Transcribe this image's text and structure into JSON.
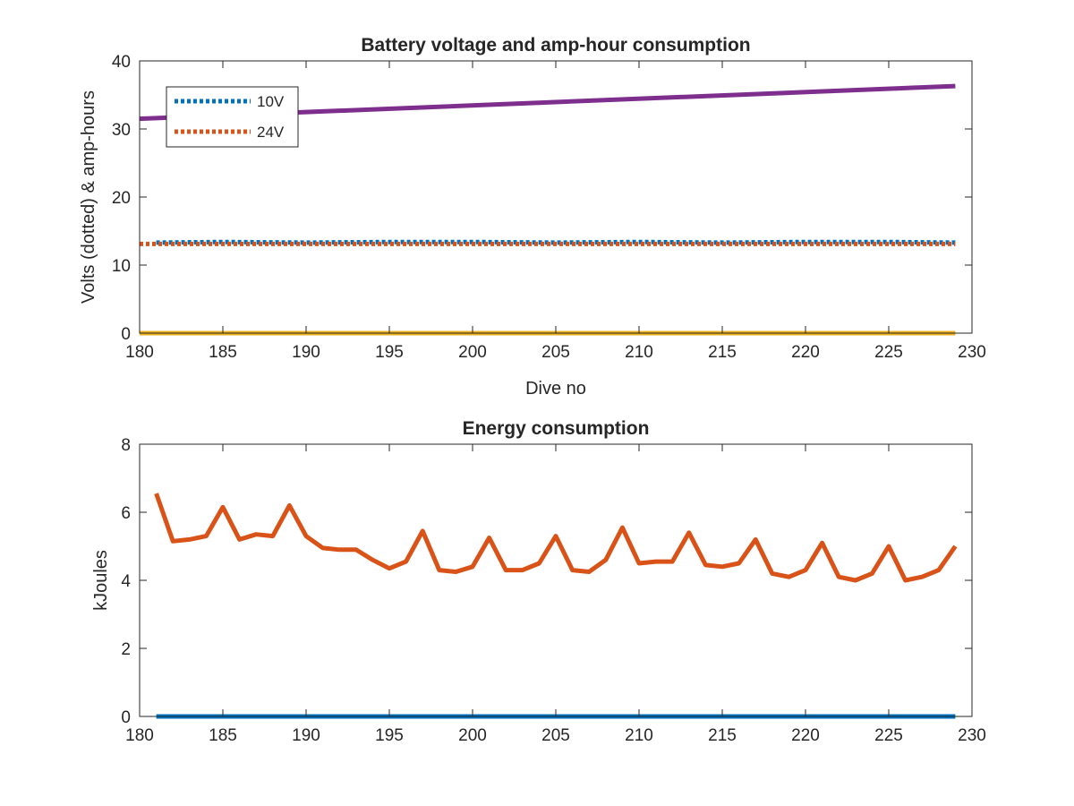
{
  "chart_data": [
    {
      "type": "line",
      "title": "Battery voltage and amp-hour consumption",
      "xlabel": "Dive no",
      "ylabel": "Volts (dotted) & amp-hours",
      "xlim": [
        180,
        230
      ],
      "ylim": [
        0,
        40
      ],
      "xticks": [
        180,
        185,
        190,
        195,
        200,
        205,
        210,
        215,
        220,
        225,
        230
      ],
      "yticks": [
        0,
        10,
        20,
        30,
        40
      ],
      "grid": false,
      "legend": {
        "placement": "top-left",
        "entries": [
          "10V",
          "24V"
        ]
      },
      "series": [
        {
          "name": "10V",
          "style": "dotted",
          "color": "#0072BD",
          "x": [
            181,
            185,
            190,
            195,
            200,
            205,
            210,
            215,
            220,
            225,
            229
          ],
          "y": [
            13.3,
            13.4,
            13.3,
            13.4,
            13.4,
            13.3,
            13.4,
            13.3,
            13.4,
            13.4,
            13.3
          ]
        },
        {
          "name": "24V",
          "style": "dotted",
          "color": "#D95319",
          "x": [
            180,
            185,
            190,
            195,
            200,
            205,
            210,
            215,
            220,
            225,
            229
          ],
          "y": [
            13.1,
            13.1,
            13.1,
            13.1,
            13.1,
            13.1,
            13.1,
            13.1,
            13.1,
            13.1,
            13.1
          ]
        },
        {
          "style": "solid",
          "color": "#7E2F8E",
          "x": [
            180,
            229
          ],
          "y": [
            31.5,
            36.3
          ]
        },
        {
          "style": "solid",
          "color": "#EDB120",
          "x": [
            180,
            229
          ],
          "y": [
            0,
            0
          ]
        }
      ]
    },
    {
      "type": "line",
      "title": "Energy consumption",
      "xlabel": "",
      "ylabel": "kJoules",
      "xlim": [
        180,
        230
      ],
      "ylim": [
        0,
        8
      ],
      "xticks": [
        180,
        185,
        190,
        195,
        200,
        205,
        210,
        215,
        220,
        225,
        230
      ],
      "yticks": [
        0,
        2,
        4,
        6,
        8
      ],
      "grid": false,
      "series": [
        {
          "style": "solid",
          "color": "#D95319",
          "x": [
            181,
            182,
            183,
            184,
            185,
            186,
            187,
            188,
            189,
            190,
            191,
            192,
            193,
            194,
            195,
            196,
            197,
            198,
            199,
            200,
            201,
            202,
            203,
            204,
            205,
            206,
            207,
            208,
            209,
            210,
            211,
            212,
            213,
            214,
            215,
            216,
            217,
            218,
            219,
            220,
            221,
            222,
            223,
            224,
            225,
            226,
            227,
            228,
            229
          ],
          "y": [
            6.55,
            5.15,
            5.2,
            5.3,
            6.15,
            5.2,
            5.35,
            5.3,
            6.2,
            5.3,
            4.95,
            4.9,
            4.9,
            4.6,
            4.35,
            4.55,
            5.45,
            4.3,
            4.25,
            4.4,
            5.25,
            4.3,
            4.3,
            4.5,
            5.3,
            4.3,
            4.25,
            4.6,
            5.55,
            4.5,
            4.55,
            4.55,
            5.4,
            4.45,
            4.4,
            4.5,
            5.2,
            4.2,
            4.1,
            4.3,
            5.1,
            4.1,
            4.0,
            4.2,
            5.0,
            4.0,
            4.1,
            4.3,
            5.0
          ]
        },
        {
          "style": "solid",
          "color": "#0072BD",
          "x": [
            181,
            229
          ],
          "y": [
            0,
            0
          ]
        }
      ]
    }
  ]
}
